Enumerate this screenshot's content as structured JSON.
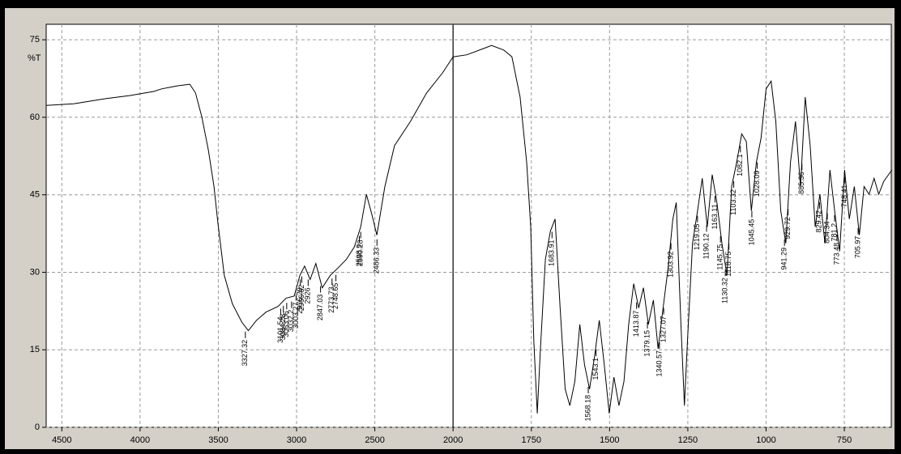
{
  "chart_data": {
    "type": "line",
    "ylabel": "%T",
    "x": [
      4600,
      4425,
      4220,
      4067,
      3913,
      3862,
      3810,
      3759,
      3682,
      3646,
      3605,
      3564,
      3528,
      3503,
      3462,
      3410,
      3349,
      3308,
      3256,
      3195,
      3118,
      3067,
      3015,
      2979,
      2949,
      2913,
      2877,
      2836,
      2785,
      2733,
      2682,
      2631,
      2590,
      2554,
      2518,
      2487,
      2436,
      2374,
      2272,
      2169,
      2067,
      2000,
      1956,
      1903,
      1877,
      1838,
      1812,
      1786,
      1765,
      1752,
      1742,
      1731,
      1721,
      1705,
      1689,
      1674,
      1658,
      1642,
      1627,
      1611,
      1595,
      1580,
      1564,
      1548,
      1533,
      1517,
      1501,
      1486,
      1470,
      1454,
      1439,
      1423,
      1407,
      1392,
      1376,
      1360,
      1345,
      1329,
      1313,
      1298,
      1287,
      1272,
      1261,
      1251,
      1235,
      1219,
      1204,
      1188,
      1172,
      1157,
      1141,
      1125,
      1110,
      1094,
      1078,
      1063,
      1047,
      1031,
      1016,
      1000,
      984,
      969,
      953,
      937,
      922,
      906,
      890,
      875,
      859,
      843,
      828,
      812,
      796,
      781,
      765,
      749,
      734,
      718,
      702,
      687,
      671,
      655,
      640,
      624,
      598
    ],
    "values": [
      62.3,
      62.6,
      63.6,
      64.2,
      65.0,
      65.5,
      65.8,
      66.1,
      66.4,
      64.7,
      60.0,
      53.7,
      46.6,
      39.6,
      29.4,
      23.9,
      20.3,
      18.7,
      20.7,
      22.3,
      23.4,
      25.0,
      25.4,
      29.4,
      31.2,
      28.6,
      31.7,
      27.0,
      29.4,
      30.9,
      32.5,
      34.9,
      38.8,
      45.1,
      41.1,
      37.2,
      46.6,
      54.5,
      59.2,
      64.7,
      68.6,
      71.7,
      72.1,
      73.3,
      73.9,
      73.0,
      71.7,
      63.9,
      51.3,
      38.8,
      16.8,
      2.7,
      15.2,
      32.5,
      38.0,
      40.3,
      23.1,
      7.4,
      4.2,
      8.9,
      19.9,
      12.1,
      7.4,
      13.7,
      20.7,
      12.1,
      2.7,
      9.7,
      4.2,
      8.9,
      19.9,
      27.8,
      23.1,
      27.0,
      19.9,
      24.6,
      15.2,
      23.1,
      30.9,
      40.3,
      43.5,
      19.9,
      4.2,
      16.8,
      35.6,
      41.9,
      48.2,
      38.8,
      48.9,
      43.5,
      35.6,
      29.4,
      46.6,
      51.3,
      56.8,
      55.3,
      41.9,
      51.3,
      56.0,
      65.5,
      67.0,
      59.2,
      41.9,
      35.6,
      51.3,
      59.2,
      46.6,
      63.9,
      54.5,
      38.8,
      45.1,
      35.6,
      49.8,
      41.9,
      34.1,
      49.8,
      40.3,
      46.6,
      37.2,
      46.6,
      45.1,
      48.2,
      45.1,
      47.6,
      49.8
    ],
    "color": "#000000",
    "xlim": [
      4600,
      600
    ],
    "x_break": 2000,
    "xticks": [
      4500,
      4000,
      3500,
      3000,
      2500,
      2000,
      1750,
      1500,
      1250,
      1000,
      750
    ],
    "ylim": [
      0,
      78
    ],
    "yticks": [
      0,
      15,
      30,
      45,
      60,
      75
    ],
    "grid": true,
    "peak_labels": [
      3327.32,
      3101.54,
      3084.28,
      3063.06,
      3032.2,
      3003.27,
      2976.29,
      2966.62,
      2926,
      2847.03,
      2773.73,
      2748.65,
      2598.9,
      2590.28,
      2486.33,
      1683.91,
      1568.18,
      1543.1,
      1413.87,
      1379.15,
      1340.57,
      1327.07,
      1303.92,
      1219.05,
      1190.12,
      1163.11,
      1145.75,
      1130.32,
      1118.75,
      1103.32,
      1082.1,
      1045.45,
      1028.09,
      941.29,
      929.72,
      885.36,
      829.42,
      804.34,
      781.2,
      773.48,
      748.41,
      705.97
    ]
  }
}
